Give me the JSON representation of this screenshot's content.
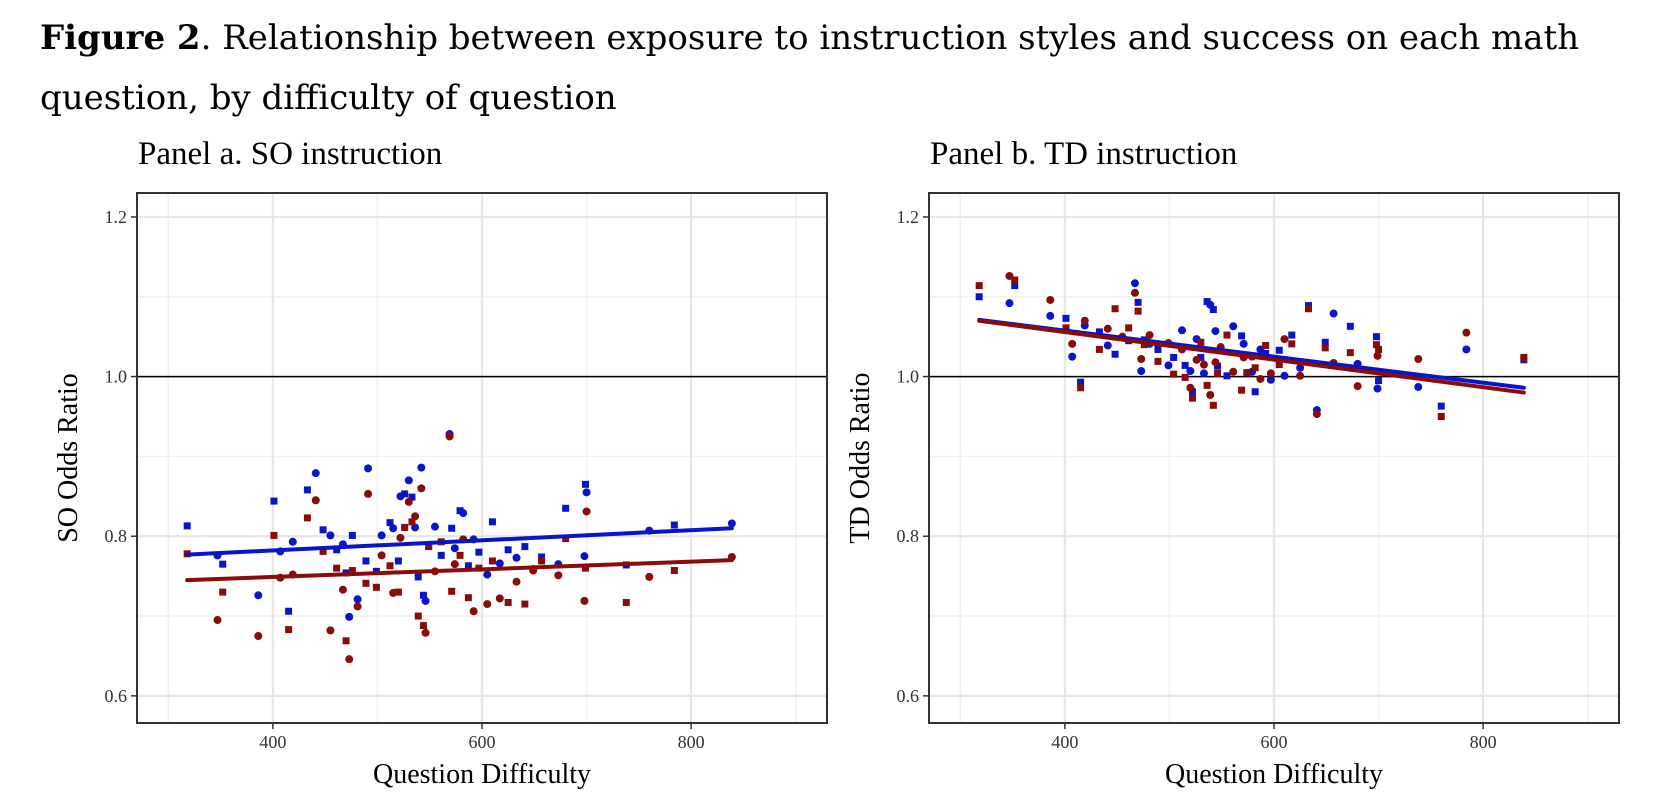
{
  "figure": {
    "label": "Figure 2",
    "text": ". Relationship between exposure to instruction styles and success on each math question, by difficulty of question"
  },
  "colors": {
    "blue": "#0a14c8",
    "red": "#8b0a0a",
    "ref_line": "#000000",
    "grid": "#e6e6e6"
  },
  "chart_data": [
    {
      "type": "scatter",
      "title": "Panel a. SO instruction",
      "xlabel": "Question Difficulty",
      "ylabel": "SO Odds Ratio",
      "xlim": [
        270,
        930
      ],
      "ylim": [
        0.566,
        1.23
      ],
      "xticks": [
        "400",
        "600",
        "800"
      ],
      "yticks": [
        "0.6",
        "0.8",
        "1.0",
        "1.2"
      ],
      "reference_line": 1.0,
      "grid": true,
      "series": [
        {
          "color": "blue",
          "points": [
            [
              318,
              0.813
            ],
            [
              347,
              0.776
            ],
            [
              352,
              0.765
            ],
            [
              386,
              0.726
            ],
            [
              401,
              0.844
            ],
            [
              407,
              0.781
            ],
            [
              415,
              0.706
            ],
            [
              419,
              0.793
            ],
            [
              433,
              0.858
            ],
            [
              441,
              0.879
            ],
            [
              448,
              0.808
            ],
            [
              455,
              0.801
            ],
            [
              461,
              0.783
            ],
            [
              467,
              0.79
            ],
            [
              470,
              0.754
            ],
            [
              473,
              0.699
            ],
            [
              476,
              0.801
            ],
            [
              481,
              0.721
            ],
            [
              489,
              0.769
            ],
            [
              491,
              0.885
            ],
            [
              499,
              0.756
            ],
            [
              504,
              0.801
            ],
            [
              512,
              0.817
            ],
            [
              515,
              0.81
            ],
            [
              520,
              0.769
            ],
            [
              522,
              0.85
            ],
            [
              526,
              0.853
            ],
            [
              530,
              0.87
            ],
            [
              533,
              0.849
            ],
            [
              536,
              0.811
            ],
            [
              539,
              0.749
            ],
            [
              542,
              0.886
            ],
            [
              544,
              0.726
            ],
            [
              546,
              0.719
            ],
            [
              549,
              0.787
            ],
            [
              555,
              0.812
            ],
            [
              561,
              0.776
            ],
            [
              569,
              0.928
            ],
            [
              571,
              0.81
            ],
            [
              574,
              0.785
            ],
            [
              579,
              0.832
            ],
            [
              582,
              0.829
            ],
            [
              587,
              0.763
            ],
            [
              592,
              0.796
            ],
            [
              597,
              0.78
            ],
            [
              605,
              0.752
            ],
            [
              610,
              0.818
            ],
            [
              617,
              0.766
            ],
            [
              625,
              0.783
            ],
            [
              633,
              0.773
            ],
            [
              641,
              0.787
            ],
            [
              649,
              0.759
            ],
            [
              657,
              0.774
            ],
            [
              673,
              0.765
            ],
            [
              680,
              0.835
            ],
            [
              698,
              0.775
            ],
            [
              699,
              0.865
            ],
            [
              700,
              0.855
            ],
            [
              738,
              0.764
            ],
            [
              760,
              0.807
            ],
            [
              784,
              0.814
            ],
            [
              839,
              0.816
            ]
          ],
          "fit": [
            [
              318,
              0.777
            ],
            [
              839,
              0.81
            ]
          ]
        },
        {
          "color": "red",
          "points": [
            [
              318,
              0.778
            ],
            [
              347,
              0.695
            ],
            [
              352,
              0.73
            ],
            [
              386,
              0.675
            ],
            [
              401,
              0.801
            ],
            [
              407,
              0.748
            ],
            [
              415,
              0.683
            ],
            [
              419,
              0.752
            ],
            [
              433,
              0.823
            ],
            [
              441,
              0.845
            ],
            [
              448,
              0.781
            ],
            [
              455,
              0.682
            ],
            [
              461,
              0.76
            ],
            [
              467,
              0.733
            ],
            [
              470,
              0.669
            ],
            [
              473,
              0.646
            ],
            [
              476,
              0.757
            ],
            [
              481,
              0.712
            ],
            [
              489,
              0.741
            ],
            [
              491,
              0.853
            ],
            [
              499,
              0.736
            ],
            [
              504,
              0.776
            ],
            [
              512,
              0.763
            ],
            [
              515,
              0.729
            ],
            [
              520,
              0.73
            ],
            [
              522,
              0.798
            ],
            [
              526,
              0.811
            ],
            [
              530,
              0.843
            ],
            [
              533,
              0.818
            ],
            [
              536,
              0.825
            ],
            [
              539,
              0.7
            ],
            [
              542,
              0.86
            ],
            [
              544,
              0.688
            ],
            [
              546,
              0.679
            ],
            [
              549,
              0.789
            ],
            [
              555,
              0.756
            ],
            [
              561,
              0.793
            ],
            [
              569,
              0.925
            ],
            [
              571,
              0.731
            ],
            [
              574,
              0.765
            ],
            [
              579,
              0.776
            ],
            [
              582,
              0.796
            ],
            [
              587,
              0.723
            ],
            [
              592,
              0.706
            ],
            [
              597,
              0.76
            ],
            [
              605,
              0.715
            ],
            [
              610,
              0.769
            ],
            [
              617,
              0.722
            ],
            [
              625,
              0.717
            ],
            [
              633,
              0.743
            ],
            [
              641,
              0.715
            ],
            [
              649,
              0.757
            ],
            [
              657,
              0.769
            ],
            [
              673,
              0.751
            ],
            [
              680,
              0.797
            ],
            [
              698,
              0.719
            ],
            [
              699,
              0.76
            ],
            [
              700,
              0.831
            ],
            [
              738,
              0.717
            ],
            [
              760,
              0.749
            ],
            [
              784,
              0.757
            ],
            [
              839,
              0.774
            ]
          ],
          "fit": [
            [
              318,
              0.745
            ],
            [
              839,
              0.77
            ]
          ]
        }
      ]
    },
    {
      "type": "scatter",
      "title": "Panel b. TD instruction",
      "xlabel": "Question Difficulty",
      "ylabel": "TD Odds Ratio",
      "xlim": [
        270,
        930
      ],
      "ylim": [
        0.566,
        1.23
      ],
      "xticks": [
        "400",
        "600",
        "800"
      ],
      "yticks": [
        "0.6",
        "0.8",
        "1.0",
        "1.2"
      ],
      "reference_line": 1.0,
      "grid": true,
      "series": [
        {
          "color": "blue",
          "points": [
            [
              318,
              1.1
            ],
            [
              347,
              1.092
            ],
            [
              352,
              1.114
            ],
            [
              386,
              1.076
            ],
            [
              401,
              1.073
            ],
            [
              407,
              1.025
            ],
            [
              415,
              0.993
            ],
            [
              419,
              1.064
            ],
            [
              433,
              1.056
            ],
            [
              441,
              1.039
            ],
            [
              448,
              1.028
            ],
            [
              455,
              1.049
            ],
            [
              461,
              1.045
            ],
            [
              467,
              1.117
            ],
            [
              470,
              1.093
            ],
            [
              473,
              1.007
            ],
            [
              476,
              1.046
            ],
            [
              481,
              1.041
            ],
            [
              489,
              1.034
            ],
            [
              499,
              1.014
            ],
            [
              504,
              1.024
            ],
            [
              512,
              1.058
            ],
            [
              515,
              1.014
            ],
            [
              520,
              1.007
            ],
            [
              522,
              0.981
            ],
            [
              526,
              1.047
            ],
            [
              530,
              1.024
            ],
            [
              533,
              1.004
            ],
            [
              536,
              1.094
            ],
            [
              539,
              1.09
            ],
            [
              542,
              1.084
            ],
            [
              544,
              1.057
            ],
            [
              546,
              1.013
            ],
            [
              549,
              1.033
            ],
            [
              555,
              1.001
            ],
            [
              561,
              1.063
            ],
            [
              569,
              1.051
            ],
            [
              571,
              1.041
            ],
            [
              574,
              1.027
            ],
            [
              579,
              1.006
            ],
            [
              582,
              0.981
            ],
            [
              587,
              1.034
            ],
            [
              592,
              1.029
            ],
            [
              597,
              0.996
            ],
            [
              605,
              1.033
            ],
            [
              610,
              1.001
            ],
            [
              617,
              1.052
            ],
            [
              625,
              1.011
            ],
            [
              633,
              1.089
            ],
            [
              641,
              0.958
            ],
            [
              649,
              1.043
            ],
            [
              657,
              1.079
            ],
            [
              673,
              1.063
            ],
            [
              680,
              1.016
            ],
            [
              698,
              1.05
            ],
            [
              699,
              0.985
            ],
            [
              700,
              0.995
            ],
            [
              738,
              0.987
            ],
            [
              760,
              0.963
            ],
            [
              784,
              1.034
            ],
            [
              839,
              1.021
            ]
          ],
          "fit": [
            [
              318,
              1.071
            ],
            [
              839,
              0.986
            ]
          ]
        },
        {
          "color": "red",
          "points": [
            [
              318,
              1.114
            ],
            [
              347,
              1.126
            ],
            [
              352,
              1.121
            ],
            [
              386,
              1.096
            ],
            [
              401,
              1.061
            ],
            [
              407,
              1.041
            ],
            [
              415,
              0.986
            ],
            [
              419,
              1.07
            ],
            [
              433,
              1.034
            ],
            [
              441,
              1.06
            ],
            [
              448,
              1.085
            ],
            [
              455,
              1.05
            ],
            [
              461,
              1.061
            ],
            [
              467,
              1.105
            ],
            [
              470,
              1.082
            ],
            [
              473,
              1.022
            ],
            [
              476,
              1.04
            ],
            [
              481,
              1.052
            ],
            [
              489,
              1.019
            ],
            [
              499,
              1.042
            ],
            [
              504,
              1.003
            ],
            [
              512,
              1.034
            ],
            [
              515,
              0.999
            ],
            [
              520,
              0.986
            ],
            [
              522,
              0.973
            ],
            [
              526,
              1.021
            ],
            [
              530,
              1.043
            ],
            [
              533,
              1.015
            ],
            [
              536,
              0.989
            ],
            [
              539,
              0.977
            ],
            [
              542,
              0.964
            ],
            [
              544,
              1.018
            ],
            [
              546,
              1.004
            ],
            [
              549,
              1.037
            ],
            [
              555,
              1.052
            ],
            [
              561,
              1.006
            ],
            [
              569,
              0.983
            ],
            [
              571,
              1.024
            ],
            [
              574,
              1.005
            ],
            [
              579,
              1.025
            ],
            [
              582,
              1.011
            ],
            [
              587,
              0.997
            ],
            [
              592,
              1.039
            ],
            [
              597,
              1.004
            ],
            [
              605,
              1.015
            ],
            [
              610,
              1.047
            ],
            [
              617,
              1.041
            ],
            [
              625,
              1.001
            ],
            [
              633,
              1.085
            ],
            [
              641,
              0.953
            ],
            [
              649,
              1.036
            ],
            [
              657,
              1.017
            ],
            [
              673,
              1.03
            ],
            [
              680,
              0.988
            ],
            [
              698,
              1.04
            ],
            [
              699,
              1.026
            ],
            [
              700,
              1.034
            ],
            [
              738,
              1.022
            ],
            [
              760,
              0.95
            ],
            [
              784,
              1.055
            ],
            [
              839,
              1.024
            ]
          ],
          "fit": [
            [
              318,
              1.07
            ],
            [
              839,
              0.98
            ]
          ]
        }
      ]
    }
  ]
}
